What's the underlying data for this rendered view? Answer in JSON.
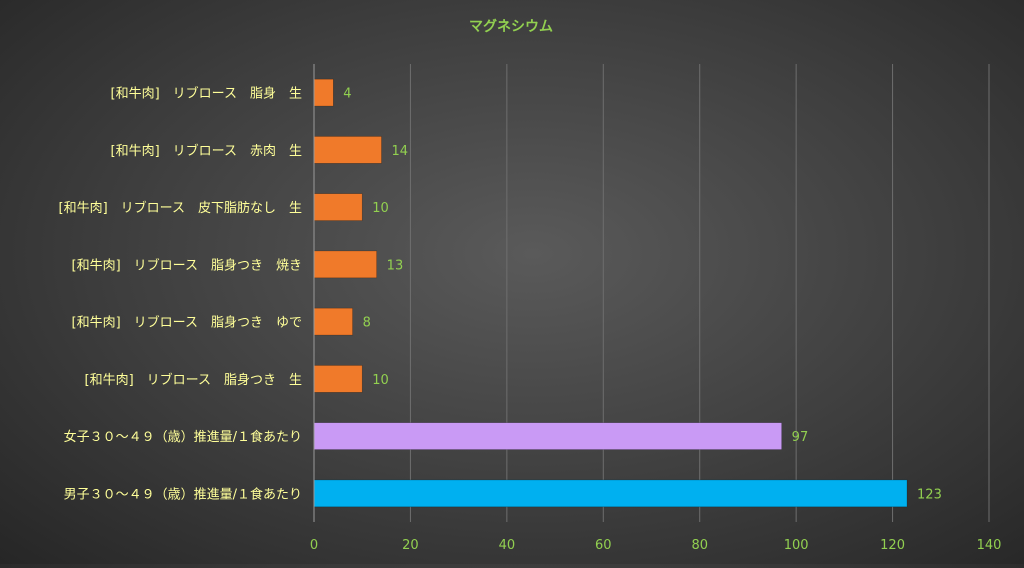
{
  "chart_data": {
    "type": "bar",
    "orientation": "horizontal",
    "title": "マグネシウム",
    "xlabel": "",
    "ylabel": "",
    "xlim": [
      0,
      140
    ],
    "x_ticks": [
      0,
      20,
      40,
      60,
      80,
      100,
      120,
      140
    ],
    "grid": true,
    "categories": [
      "[和牛肉]　リブロース　脂身　生",
      "[和牛肉]　リブロース　赤肉　生",
      "[和牛肉]　リブロース　皮下脂肪なし　生",
      "[和牛肉]　リブロース　脂身つき　焼き",
      "[和牛肉]　リブロース　脂身つき　ゆで",
      "[和牛肉]　リブロース　脂身つき　生",
      "女子３０～４９（歳）推進量/１食あたり",
      "男子３０～４９（歳）推進量/１食あたり"
    ],
    "values": [
      4,
      14,
      10,
      13,
      8,
      10,
      97,
      123
    ],
    "bar_colors": [
      "#f07a2a",
      "#f07a2a",
      "#f07a2a",
      "#f07a2a",
      "#f07a2a",
      "#f07a2a",
      "#c99af5",
      "#00b0f0"
    ],
    "colors": {
      "title": "#92d050",
      "category_label": "#ffff99",
      "tick_label": "#92d050",
      "data_label": "#92d050",
      "grid": "#6e6e6e"
    }
  }
}
